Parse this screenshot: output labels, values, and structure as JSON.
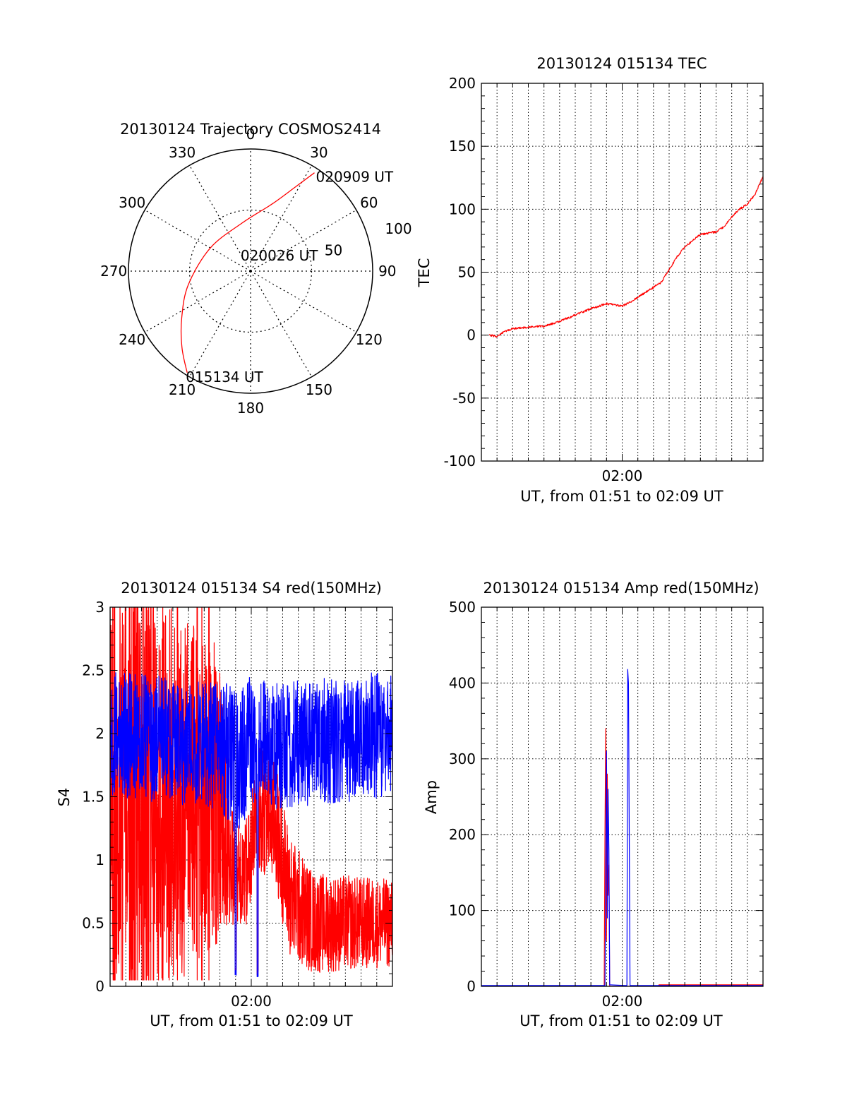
{
  "chart_data": [
    {
      "id": "trajectory",
      "type": "polar",
      "title": "20130124 Trajectory COSMOS2414",
      "angle_labels": [
        "0",
        "30",
        "60",
        "90",
        "120",
        "150",
        "180",
        "210",
        "240",
        "270",
        "300",
        "330"
      ],
      "radial_labels": [
        "50",
        "100"
      ],
      "rlim": [
        0,
        100
      ],
      "grid": true,
      "track_color": "#ff0000",
      "track": [
        {
          "azimuth": 212,
          "elevation_dist": 98
        },
        {
          "azimuth": 222,
          "elevation_dist": 84
        },
        {
          "azimuth": 236,
          "elevation_dist": 68
        },
        {
          "azimuth": 258,
          "elevation_dist": 52
        },
        {
          "azimuth": 300,
          "elevation_dist": 38
        },
        {
          "azimuth": 350,
          "elevation_dist": 40
        },
        {
          "azimuth": 18,
          "elevation_dist": 58
        },
        {
          "azimuth": 28,
          "elevation_dist": 78
        },
        {
          "azimuth": 33,
          "elevation_dist": 96
        }
      ],
      "annotations": [
        {
          "text": "020909 UT",
          "azimuth": 33,
          "elevation_dist": 96
        },
        {
          "text": "020026 UT",
          "azimuth": 80,
          "elevation_dist": 14
        },
        {
          "text": "015134 UT",
          "azimuth": 212,
          "elevation_dist": 98
        }
      ]
    },
    {
      "id": "tec",
      "type": "line",
      "title": "20130124 015134 TEC",
      "xlabel": "UT, from 01:51 to 02:09 UT",
      "ylabel": "TEC",
      "x_tick_labels": [
        {
          "minute": 9,
          "label": "02:00"
        }
      ],
      "xlim_minutes": [
        0,
        18
      ],
      "ylim": [
        -100,
        200
      ],
      "y_ticks": [
        -100,
        -50,
        0,
        50,
        100,
        150,
        200
      ],
      "grid": true,
      "series": [
        {
          "color": "#ff0000",
          "x_minutes": [
            0.5,
            1.0,
            1.5,
            2.0,
            2.5,
            3.0,
            3.5,
            4.0,
            5.0,
            6.0,
            7.0,
            8.0,
            8.5,
            9.0,
            9.5,
            10.0,
            11.0,
            11.5,
            12.0,
            12.5,
            13.0,
            14.0,
            15.0,
            15.5,
            16.0,
            16.5,
            17.0,
            17.5,
            18.0
          ],
          "values": [
            0,
            -1,
            3,
            5,
            6,
            6,
            7,
            7,
            11,
            16,
            21,
            25,
            24,
            23,
            26,
            30,
            38,
            42,
            52,
            62,
            70,
            80,
            82,
            86,
            94,
            100,
            104,
            112,
            126
          ]
        }
      ]
    },
    {
      "id": "s4",
      "type": "line",
      "title": "20130124 015134 S4 red(150MHz)",
      "xlabel": "UT, from 01:51 to 02:09 UT",
      "ylabel": "S4",
      "x_tick_labels": [
        {
          "minute": 9,
          "label": "02:00"
        }
      ],
      "xlim_minutes": [
        0,
        18
      ],
      "ylim": [
        0,
        3
      ],
      "y_ticks": [
        0,
        0.5,
        1,
        1.5,
        2,
        2.5,
        3
      ],
      "y_tick_labels": [
        "0",
        "0.5",
        "1",
        "1.5",
        "2",
        "2.5",
        "3"
      ],
      "grid": true,
      "series": [
        {
          "color": "#ff0000",
          "style": "noisy",
          "x_minutes": [
            0,
            4,
            7,
            7.5,
            8.5,
            9.5,
            10.5,
            11.5,
            13,
            18
          ],
          "center": [
            1.6,
            1.5,
            1.5,
            1.0,
            0.8,
            1.4,
            1.3,
            0.7,
            0.5,
            0.5
          ],
          "spread": [
            1.6,
            1.5,
            1.2,
            0.5,
            0.4,
            0.5,
            0.5,
            0.5,
            0.4,
            0.35
          ],
          "spikes": [
            0.3,
            0.3,
            0.25,
            1.25,
            1.35,
            1.45,
            1.55,
            1.65,
            1.75,
            2.05,
            2.15,
            2.3,
            2.45,
            2.6,
            2.75,
            3.35,
            4.3,
            5.55,
            5.85,
            6.3
          ],
          "dips": [
            {
              "minute": 8.0,
              "value": 0.1
            },
            {
              "minute": 9.4,
              "value": 0.08
            }
          ]
        },
        {
          "color": "#0000ff",
          "style": "noisy",
          "x_minutes": [
            0,
            7,
            8,
            9.5,
            10.5,
            18
          ],
          "center": [
            2.0,
            1.9,
            1.8,
            2.0,
            1.9,
            2.0
          ],
          "spread": [
            0.5,
            0.5,
            0.6,
            0.5,
            0.5,
            0.5
          ],
          "dips": [
            {
              "minute": 8.0,
              "value": 0.08
            },
            {
              "minute": 9.4,
              "value": 0.07
            }
          ]
        }
      ]
    },
    {
      "id": "amp",
      "type": "line",
      "title": "20130124 015134 Amp red(150MHz)",
      "xlabel": "UT, from 01:51 to 02:09 UT",
      "ylabel": "Amp",
      "x_tick_labels": [
        {
          "minute": 9,
          "label": "02:00"
        }
      ],
      "xlim_minutes": [
        0,
        18
      ],
      "ylim": [
        0,
        500
      ],
      "y_ticks": [
        0,
        100,
        200,
        300,
        400,
        500
      ],
      "grid": true,
      "series": [
        {
          "color": "#ff0000",
          "x_minutes": [
            0,
            7.85,
            7.9,
            7.95,
            8.0,
            8.05,
            8.1,
            8.15,
            8.2,
            11.3,
            11.35,
            18
          ],
          "values": [
            0,
            0,
            200,
            340,
            60,
            280,
            120,
            160,
            0,
            0,
            2,
            2
          ]
        },
        {
          "color": "#0000ff",
          "x_minutes": [
            0,
            7.9,
            7.95,
            8.0,
            8.05,
            8.1,
            8.15,
            8.2,
            9.2,
            9.3,
            9.35,
            9.4,
            9.5,
            18
          ],
          "values": [
            1,
            1,
            150,
            310,
            90,
            260,
            180,
            2,
            1,
            1,
            418,
            400,
            1,
            1
          ]
        }
      ]
    }
  ]
}
